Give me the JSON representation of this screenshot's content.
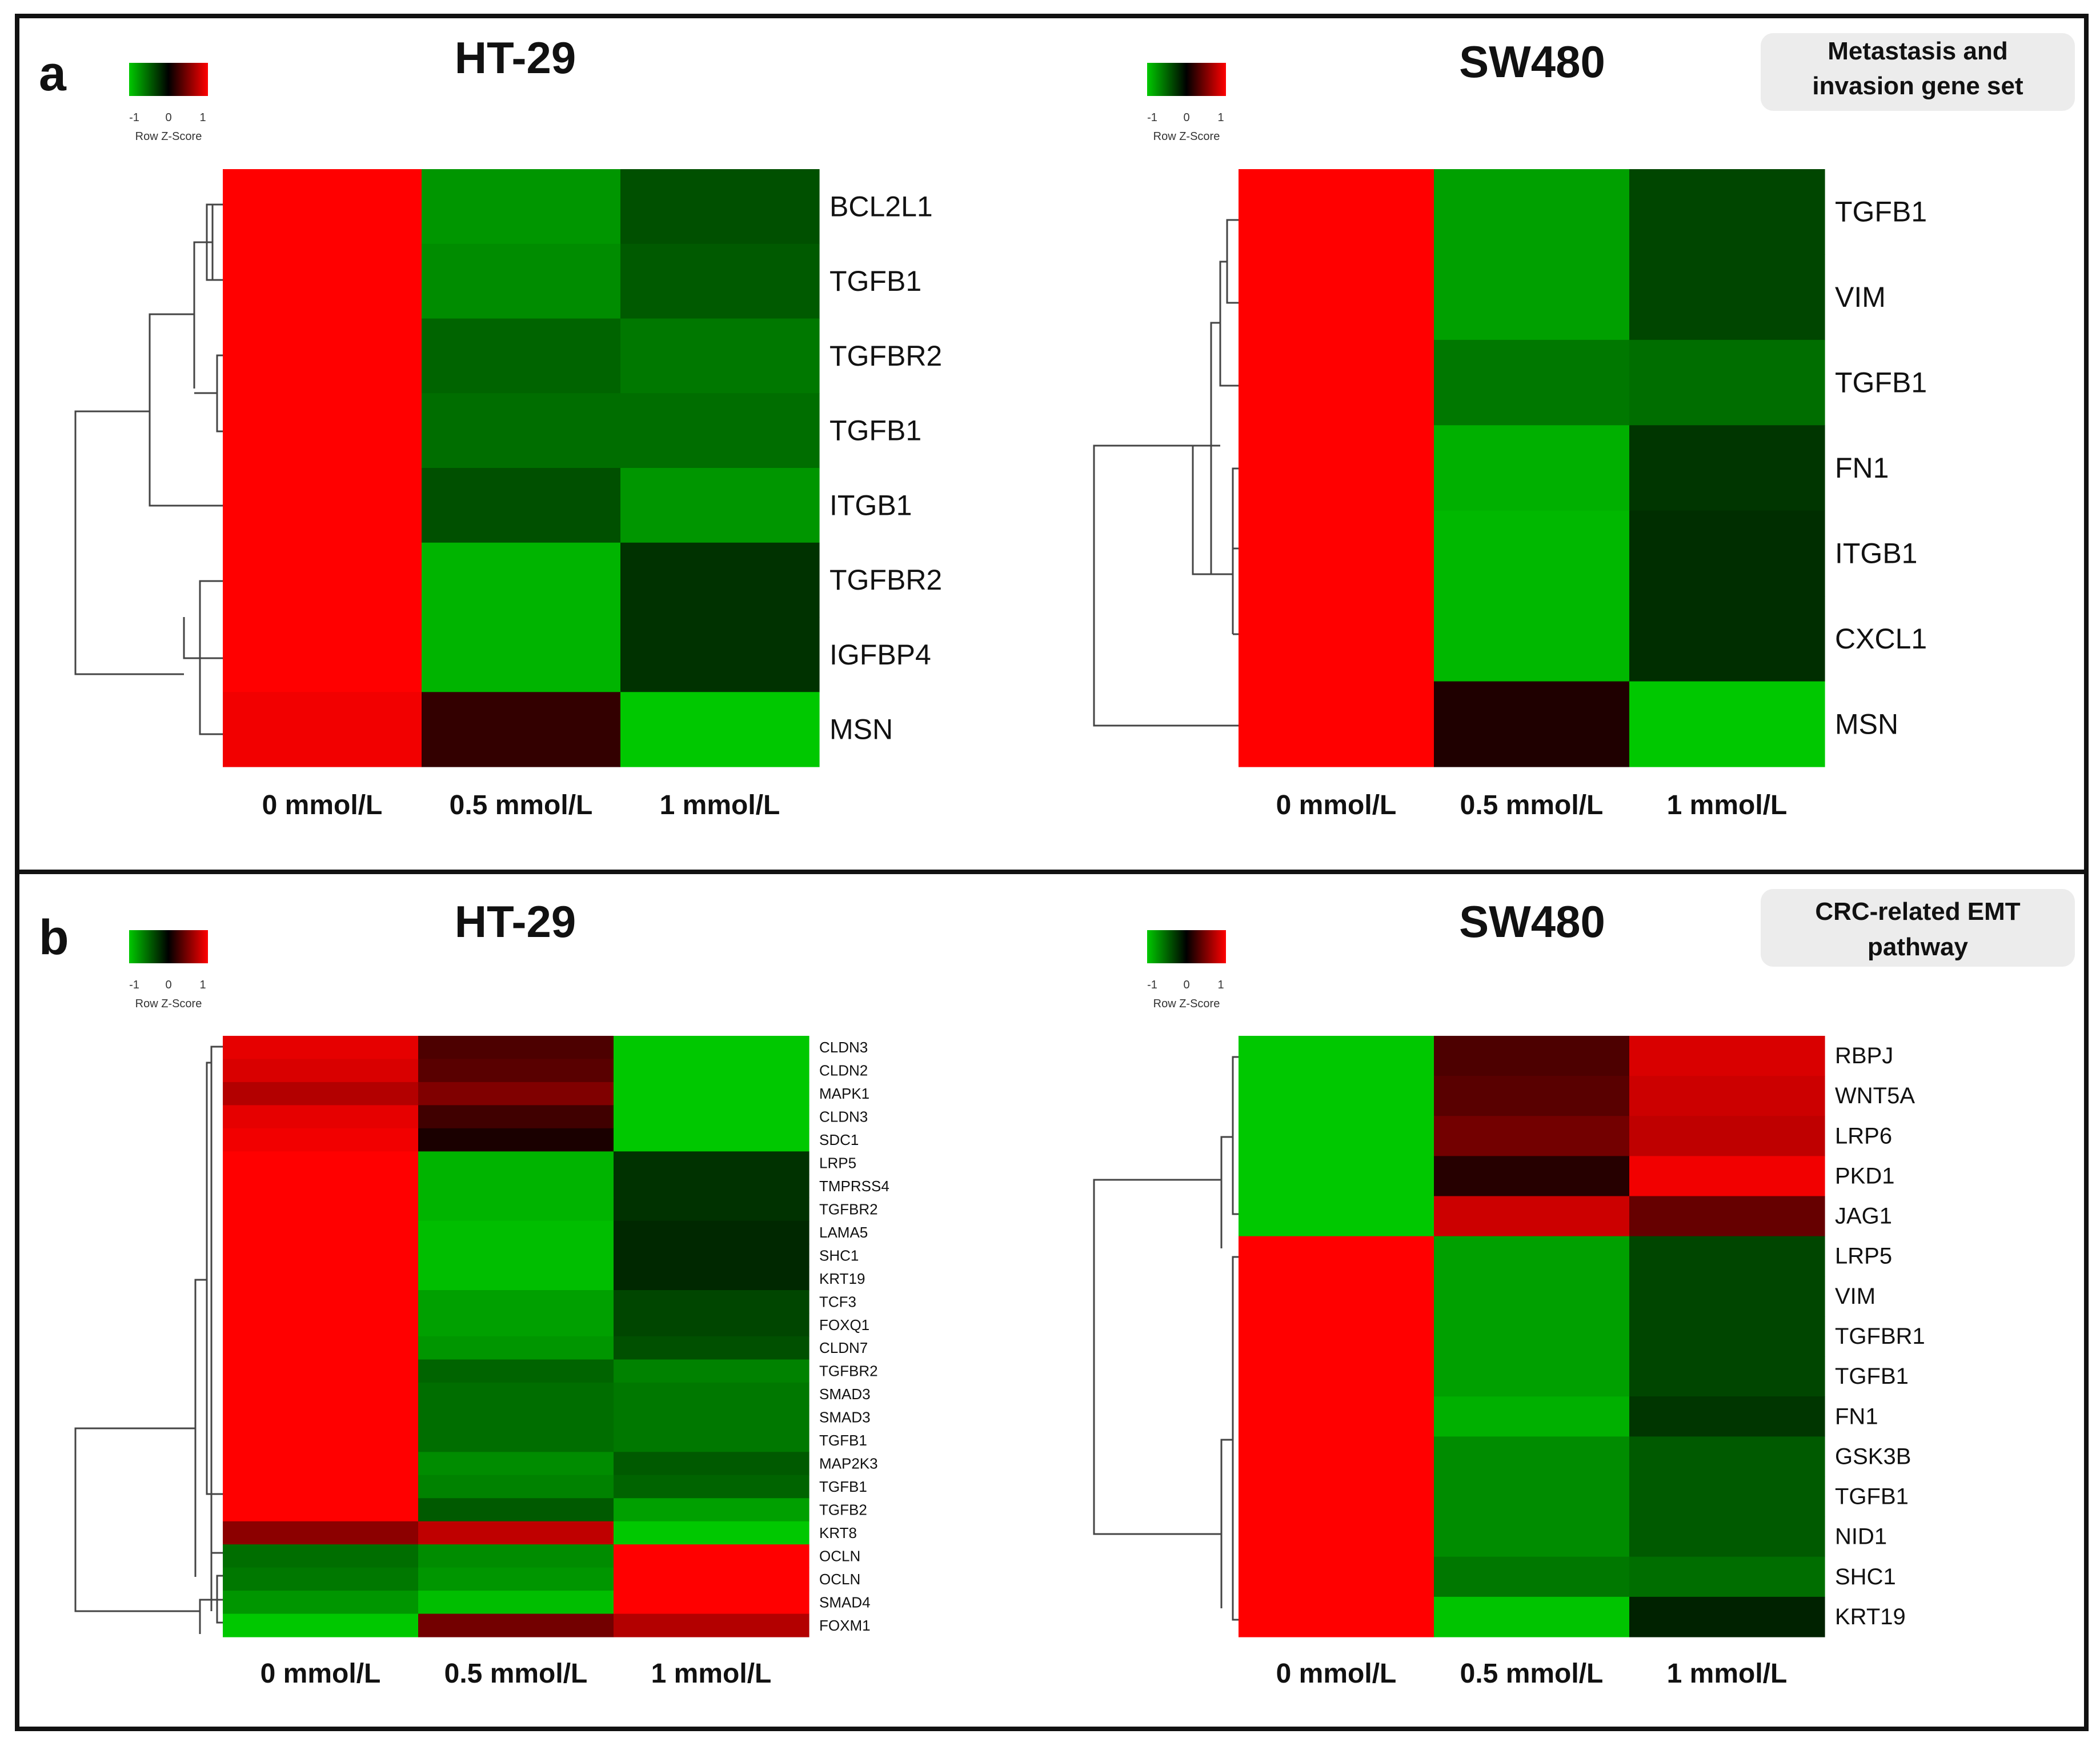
{
  "panels": [
    {
      "letter": "a",
      "badge": [
        "Metastasis and",
        "invasion gene set"
      ],
      "legend_ticks": [
        "-1",
        "0",
        "1"
      ],
      "legend_label": "Row Z-Score"
    },
    {
      "letter": "b",
      "badge": [
        "CRC-related EMT",
        "pathway"
      ],
      "legend_ticks": [
        "-1",
        "0",
        "1"
      ],
      "legend_label": "Row Z-Score"
    }
  ],
  "chart_data": [
    {
      "type": "heatmap",
      "panel": "a",
      "title": "HT-29",
      "columns": [
        "0 mmol/L",
        "0.5 mmol/L",
        "1 mmol/L"
      ],
      "rows": [
        "BCL2L1",
        "TGFB1",
        "TGFBR2",
        "TGFB1",
        "ITGB1",
        "TGFBR2",
        "IGFBP4",
        "MSN"
      ],
      "values": [
        [
          1.15,
          -0.75,
          -0.4
        ],
        [
          1.15,
          -0.7,
          -0.45
        ],
        [
          1.15,
          -0.5,
          -0.6
        ],
        [
          1.15,
          -0.55,
          -0.55
        ],
        [
          1.15,
          -0.4,
          -0.75
        ],
        [
          1.15,
          -0.9,
          -0.25
        ],
        [
          1.15,
          -0.9,
          -0.25
        ],
        [
          0.95,
          0.2,
          -1.15
        ]
      ],
      "color_scale": {
        "low": "#00c800",
        "mid": "#000000",
        "high": "#ff0000",
        "range": [
          -1,
          1
        ]
      }
    },
    {
      "type": "heatmap",
      "panel": "a",
      "title": "SW480",
      "columns": [
        "0 mmol/L",
        "0.5 mmol/L",
        "1 mmol/L"
      ],
      "rows": [
        "TGFB1",
        "VIM",
        "TGFB1",
        "FN1",
        "ITGB1",
        "CXCL1",
        "MSN"
      ],
      "values": [
        [
          1.15,
          -0.8,
          -0.35
        ],
        [
          1.15,
          -0.8,
          -0.35
        ],
        [
          1.15,
          -0.6,
          -0.55
        ],
        [
          1.15,
          -0.88,
          -0.27
        ],
        [
          1.15,
          -0.92,
          -0.23
        ],
        [
          1.15,
          -0.92,
          -0.23
        ],
        [
          1.05,
          0.12,
          -1.1
        ]
      ],
      "color_scale": {
        "low": "#00c800",
        "mid": "#000000",
        "high": "#ff0000",
        "range": [
          -1,
          1
        ]
      }
    },
    {
      "type": "heatmap",
      "panel": "b",
      "title": "HT-29",
      "columns": [
        "0 mmol/L",
        "0.5 mmol/L",
        "1 mmol/L"
      ],
      "rows": [
        "CLDN3",
        "CLDN2",
        "MAPK1",
        "CLDN3",
        "SDC1",
        "LRP5",
        "TMPRSS4",
        "TGFBR2",
        "LAMA5",
        "SHC1",
        "KRT19",
        "TCF3",
        "FOXQ1",
        "CLDN7",
        "TGFBR2",
        "SMAD3",
        "SMAD3",
        "TGFB1",
        "MAP2K3",
        "TGFB1",
        "TGFB2",
        "KRT8",
        "OCLN",
        "OCLN",
        "SMAD4",
        "FOXM1"
      ],
      "values": [
        [
          0.9,
          0.3,
          -1.2
        ],
        [
          0.85,
          0.35,
          -1.2
        ],
        [
          0.7,
          0.5,
          -1.2
        ],
        [
          0.9,
          0.25,
          -1.15
        ],
        [
          0.95,
          0.1,
          -1.05
        ],
        [
          1.15,
          -0.9,
          -0.25
        ],
        [
          1.15,
          -0.9,
          -0.25
        ],
        [
          1.15,
          -0.9,
          -0.25
        ],
        [
          1.15,
          -0.95,
          -0.2
        ],
        [
          1.15,
          -0.95,
          -0.2
        ],
        [
          1.15,
          -0.95,
          -0.2
        ],
        [
          1.15,
          -0.8,
          -0.35
        ],
        [
          1.15,
          -0.8,
          -0.35
        ],
        [
          1.15,
          -0.75,
          -0.4
        ],
        [
          1.15,
          -0.5,
          -0.65
        ],
        [
          1.15,
          -0.55,
          -0.6
        ],
        [
          1.15,
          -0.55,
          -0.6
        ],
        [
          1.15,
          -0.55,
          -0.6
        ],
        [
          1.15,
          -0.7,
          -0.45
        ],
        [
          1.15,
          -0.65,
          -0.5
        ],
        [
          1.15,
          -0.45,
          -0.8
        ],
        [
          0.55,
          0.75,
          -1.1
        ],
        [
          -0.55,
          -0.7,
          1.15
        ],
        [
          -0.6,
          -0.75,
          1.15
        ],
        [
          -0.75,
          -0.95,
          1.15
        ],
        [
          -1.1,
          0.45,
          0.7
        ]
      ],
      "color_scale": {
        "low": "#00c800",
        "mid": "#000000",
        "high": "#ff0000",
        "range": [
          -1,
          1
        ]
      }
    },
    {
      "type": "heatmap",
      "panel": "b",
      "title": "SW480",
      "columns": [
        "0 mmol/L",
        "0.5 mmol/L",
        "1 mmol/L"
      ],
      "rows": [
        "RBPJ",
        "WNT5A",
        "LRP6",
        "PKD1",
        "JAG1",
        "LRP5",
        "VIM",
        "TGFBR1",
        "TGFB1",
        "FN1",
        "GSK3B",
        "TGFB1",
        "NID1",
        "SHC1",
        "KRT19"
      ],
      "values": [
        [
          -1.15,
          0.3,
          0.85
        ],
        [
          -1.15,
          0.35,
          0.8
        ],
        [
          -1.15,
          0.45,
          0.75
        ],
        [
          -1.1,
          0.15,
          0.95
        ],
        [
          -1.05,
          0.8,
          0.4
        ],
        [
          1.15,
          -0.8,
          -0.35
        ],
        [
          1.15,
          -0.8,
          -0.35
        ],
        [
          1.15,
          -0.8,
          -0.35
        ],
        [
          1.15,
          -0.8,
          -0.35
        ],
        [
          1.15,
          -0.88,
          -0.27
        ],
        [
          1.15,
          -0.7,
          -0.45
        ],
        [
          1.15,
          -0.7,
          -0.45
        ],
        [
          1.15,
          -0.7,
          -0.45
        ],
        [
          1.15,
          -0.6,
          -0.55
        ],
        [
          1.15,
          -0.98,
          -0.17
        ]
      ],
      "color_scale": {
        "low": "#00c800",
        "mid": "#000000",
        "high": "#ff0000",
        "range": [
          -1,
          1
        ]
      }
    }
  ]
}
